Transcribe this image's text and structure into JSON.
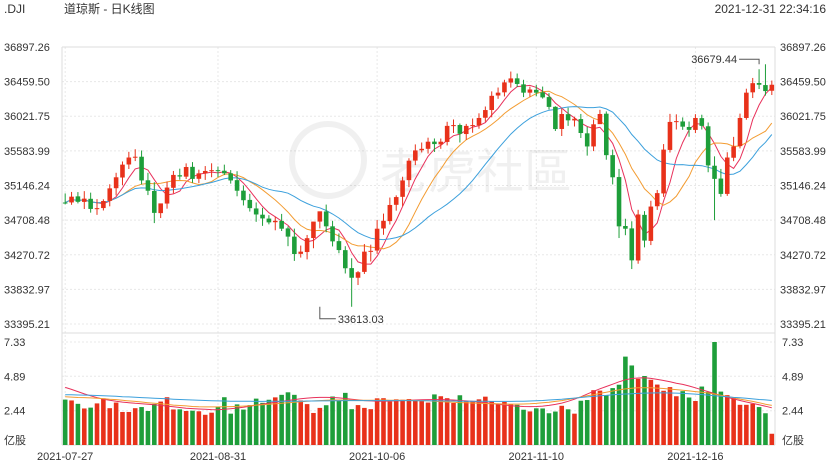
{
  "header": {
    "symbol": ".DJI",
    "title": "道琼斯 - 日K线图",
    "datetime": "2021-12-31 22:34:16"
  },
  "watermark": {
    "text": "老虎社區"
  },
  "chart_data": {
    "type": "candlestick",
    "price_ticks": [
      "36897.26",
      "36459.50",
      "36021.75",
      "35583.99",
      "35146.24",
      "34708.48",
      "34270.72",
      "33832.97",
      "33395.21"
    ],
    "price_range": [
      33395.21,
      36897.26
    ],
    "volume_ticks": [
      "7.33",
      "4.89",
      "2.44",
      "亿股"
    ],
    "volume_range": [
      0,
      7.33
    ],
    "x_ticks": [
      {
        "label": "2021-07-27",
        "index": 0
      },
      {
        "label": "2021-08-31",
        "index": 24
      },
      {
        "label": "2021-10-06",
        "index": 49
      },
      {
        "label": "2021-11-10",
        "index": 74
      },
      {
        "label": "2021-12-16",
        "index": 99
      }
    ],
    "annotations": {
      "high": {
        "label": "36679.44",
        "index": 109,
        "value": 36679.44
      },
      "low": {
        "label": "33613.03",
        "index": 40,
        "value": 33613.03
      }
    },
    "colors": {
      "up": "#e8311a",
      "down": "#1e9e3a",
      "ma5": "#e8315b",
      "ma10": "#f39c32",
      "ma20": "#3ca0dc"
    },
    "closes": [
      34930,
      35005,
      34940,
      34980,
      34850,
      34860,
      34950,
      35110,
      35250,
      35410,
      35500,
      35510,
      35210,
      35080,
      34800,
      34920,
      35120,
      35280,
      35260,
      35380,
      35230,
      35300,
      35330,
      35340,
      35330,
      35300,
      35210,
      35080,
      34960,
      34860,
      34780,
      34730,
      34680,
      34700,
      34600,
      34500,
      34280,
      34310,
      34480,
      34690,
      34820,
      34630,
      34440,
      34330,
      34100,
      33980,
      34050,
      34310,
      34320,
      34600,
      34700,
      34900,
      35000,
      35210,
      35460,
      35590,
      35610,
      35700,
      35670,
      35700,
      35900,
      35910,
      35800,
      35900,
      35910,
      36000,
      36100,
      36280,
      36320,
      36450,
      36500,
      36430,
      36320,
      36360,
      36320,
      36260,
      36140,
      35860,
      36050,
      35970,
      35990,
      35810,
      35640,
      35920,
      36050,
      35530,
      35250,
      34630,
      34600,
      34200,
      34780,
      34450,
      34880,
      35050,
      35600,
      35950,
      35960,
      35890,
      35850,
      36000,
      35900,
      35400,
      35230,
      35040,
      35500,
      35640,
      36000,
      36320,
      36440,
      36420,
      36340,
      36420
    ],
    "opens": [
      34931,
      34932,
      35009,
      34939,
      34978,
      34847,
      34861,
      34952,
      35112,
      35247,
      35412,
      35501,
      35510,
      35212,
      35077,
      34797,
      34918,
      35117,
      35276,
      35258,
      35382,
      35231,
      35301,
      35333,
      35340,
      35333,
      35300,
      35214,
      35081,
      34964,
      34856,
      34777,
      34728,
      34682,
      34698,
      34604,
      34500,
      34282,
      34305,
      34482,
      34690,
      34818,
      34630,
      34443,
      34329,
      34102,
      33980,
      34054,
      34312,
      34324,
      34603,
      34696,
      34902,
      35003,
      35214,
      35461,
      35592,
      35610,
      35701,
      35666,
      35697,
      35897,
      35911,
      35797,
      35901,
      35907,
      36003,
      36101,
      36284,
      36324,
      36448,
      36501,
      36425,
      36320,
      36356,
      36324,
      36264,
      36141,
      35861,
      36048,
      35969,
      35986,
      35806,
      35640,
      35922,
      36054,
      35530,
      35253,
      34634,
      34604,
      34198,
      34775,
      34446,
      34884,
      35046,
      35596,
      35949,
      35956,
      35886,
      35849,
      35998,
      35895,
      35396,
      35234,
      35040,
      35497,
      35644,
      36000,
      36324,
      36442,
      36416,
      36344
    ],
    "highs": [
      35046,
      35065,
      35063,
      35075,
      35056,
      34974,
      34972,
      35162,
      35307,
      35450,
      35572,
      35605,
      35589,
      35307,
      35188,
      34899,
      35197,
      35330,
      35359,
      35426,
      35442,
      35346,
      35392,
      35427,
      35386,
      35410,
      35341,
      35327,
      35146,
      35041,
      34932,
      34864,
      34771,
      34751,
      34787,
      34629,
      34601,
      34387,
      34521,
      34593,
      34750,
      34905,
      34700,
      34540,
      34379,
      34226,
      34064,
      34406,
      34398,
      34710,
      34791,
      34994,
      35022,
      35257,
      35491,
      35666,
      35690,
      35751,
      35741,
      35740,
      35952,
      35981,
      35930,
      35925,
      35993,
      36059,
      36145,
      36336,
      36385,
      36483,
      36587,
      36562,
      36483,
      36396,
      36419,
      36397,
      36314,
      36148,
      36123,
      36130,
      36015,
      36051,
      35888,
      35981,
      36103,
      36083,
      35600,
      35356,
      34726,
      34694,
      34839,
      34822,
      34953,
      35090,
      35670,
      36052,
      36046,
      36007,
      35955,
      36048,
      36041,
      35943,
      35515,
      35356,
      35567,
      35761,
      36055,
      36370,
      36506,
      36616,
      36679,
      36473
    ],
    "lows": [
      34908,
      34902,
      34920,
      34849,
      34803,
      34775,
      34830,
      34883,
      35021,
      35150,
      35355,
      35455,
      35160,
      35025,
      34671,
      34735,
      34853,
      35047,
      35219,
      35228,
      35180,
      35176,
      35217,
      35251,
      35253,
      35278,
      35170,
      35010,
      34894,
      34817,
      34687,
      34636,
      34655,
      34580,
      34571,
      34379,
      34193,
      34235,
      34212,
      34353,
      34604,
      34555,
      34376,
      34290,
      34034,
      33613,
      33888,
      34028,
      34185,
      34282,
      34523,
      34653,
      34828,
      34886,
      35125,
      35404,
      35564,
      35550,
      35570,
      35610,
      35653,
      35810,
      35690,
      35725,
      35813,
      35864,
      35952,
      36009,
      36242,
      36272,
      36384,
      36391,
      36264,
      36269,
      36275,
      36245,
      36107,
      35835,
      35772,
      35900,
      35892,
      35747,
      35524,
      35581,
      35928,
      35472,
      35160,
      34482,
      34518,
      34090,
      34157,
      34364,
      34393,
      34838,
      35002,
      35563,
      35854,
      35850,
      35763,
      35809,
      35854,
      35314,
      34708,
      35004,
      35015,
      35454,
      35615,
      35978,
      36252,
      36366,
      36283,
      36290
    ],
    "volumes": [
      3.23,
      3.17,
      2.93,
      2.6,
      2.66,
      2.96,
      3.32,
      2.62,
      3.02,
      2.35,
      2.35,
      2.62,
      2.7,
      2.42,
      2.92,
      3.09,
      3.4,
      2.53,
      2.54,
      2.42,
      2.44,
      2.4,
      2.15,
      2.3,
      2.72,
      3.4,
      2.23,
      2.89,
      2.52,
      2.84,
      3.3,
      3.0,
      3.22,
      3.39,
      3.57,
      3.75,
      3.57,
      3.17,
      2.91,
      2.28,
      2.64,
      2.83,
      3.45,
      3.19,
      3.71,
      2.55,
      2.84,
      2.64,
      2.55,
      3.32,
      3.33,
      3.09,
      3.25,
      3.22,
      3.27,
      3.17,
      3.13,
      3.02,
      3.6,
      3.47,
      3.33,
      2.99,
      3.54,
      3.13,
      3.14,
      3.25,
      3.44,
      3.13,
      2.95,
      3.07,
      2.9,
      2.86,
      2.51,
      2.39,
      2.61,
      2.6,
      2.26,
      2.38,
      2.79,
      2.54,
      2.23,
      3.15,
      3.2,
      3.9,
      3.87,
      3.56,
      4.05,
      4.29,
      6.29,
      5.66,
      4.71,
      4.91,
      4.64,
      4.3,
      3.86,
      4.12,
      3.47,
      3.83,
      3.38,
      3.13,
      4.16,
      3.78,
      7.33,
      3.8,
      3.55,
      3.34,
      2.86,
      2.86,
      2.93,
      2.7,
      2.26,
      0.8
    ],
    "ma5_volume": [
      4.1,
      3.96,
      3.8,
      3.64,
      3.5,
      3.37,
      3.26,
      3.18,
      3.11,
      3.05,
      3.01,
      2.97,
      2.94,
      2.9,
      2.86,
      2.82,
      2.77,
      2.72,
      2.67,
      2.62,
      2.59,
      2.56,
      2.54,
      2.52,
      2.51,
      2.54,
      2.58,
      2.63,
      2.69,
      2.76,
      2.84,
      2.91,
      2.98,
      3.04,
      3.1,
      3.17,
      3.23,
      3.29,
      3.34,
      3.37,
      3.39,
      3.39,
      3.38,
      3.35,
      3.31,
      3.26,
      3.21,
      3.16,
      3.14,
      3.12,
      3.12,
      3.13,
      3.14,
      3.16,
      3.18,
      3.2,
      3.22,
      3.23,
      3.23,
      3.23,
      3.22,
      3.2,
      3.17,
      3.14,
      3.1,
      3.06,
      3.01,
      2.96,
      2.9,
      2.85,
      2.8,
      2.77,
      2.74,
      2.73,
      2.74,
      2.77,
      2.82,
      2.89,
      2.98,
      3.11,
      3.26,
      3.43,
      3.62,
      3.82,
      4.0,
      4.16,
      4.33,
      4.5,
      4.64,
      4.73,
      4.77,
      4.78,
      4.74,
      4.67,
      4.59,
      4.5,
      4.4,
      4.31,
      4.2,
      4.07,
      3.93,
      3.8,
      3.66,
      3.52,
      3.39,
      3.28,
      3.17,
      3.06,
      2.96,
      2.86,
      2.76,
      2.65
    ],
    "ma10_volume": [
      3.43,
      3.41,
      3.38,
      3.37,
      3.35,
      3.33,
      3.3,
      3.26,
      3.23,
      3.18,
      3.14,
      3.1,
      3.06,
      3.01,
      2.97,
      2.93,
      2.89,
      2.84,
      2.81,
      2.78,
      2.74,
      2.72,
      2.71,
      2.71,
      2.71,
      2.72,
      2.73,
      2.75,
      2.77,
      2.8,
      2.84,
      2.87,
      2.9,
      2.94,
      2.97,
      3.01,
      3.04,
      3.08,
      3.11,
      3.14,
      3.16,
      3.19,
      3.2,
      3.2,
      3.2,
      3.19,
      3.19,
      3.19,
      3.18,
      3.19,
      3.2,
      3.19,
      3.19,
      3.19,
      3.18,
      3.17,
      3.16,
      3.15,
      3.12,
      3.09,
      3.06,
      3.04,
      3.02,
      3.0,
      2.99,
      2.97,
      2.95,
      2.94,
      2.93,
      2.91,
      2.91,
      2.91,
      2.92,
      2.93,
      2.96,
      3.0,
      3.04,
      3.1,
      3.16,
      3.24,
      3.32,
      3.41,
      3.5,
      3.58,
      3.67,
      3.75,
      3.84,
      3.92,
      3.99,
      4.04,
      4.07,
      4.08,
      4.08,
      4.05,
      4.02,
      3.98,
      3.94,
      3.9,
      3.85,
      3.8,
      3.75,
      3.7,
      3.62,
      3.54,
      3.45,
      3.36,
      3.27,
      3.19,
      3.1,
      3.01,
      2.9,
      2.82
    ],
    "ma20_volume": [
      3.58,
      3.57,
      3.56,
      3.55,
      3.54,
      3.52,
      3.51,
      3.49,
      3.47,
      3.44,
      3.42,
      3.4,
      3.37,
      3.35,
      3.33,
      3.31,
      3.29,
      3.26,
      3.24,
      3.22,
      3.2,
      3.18,
      3.17,
      3.15,
      3.14,
      3.13,
      3.12,
      3.12,
      3.11,
      3.11,
      3.1,
      3.1,
      3.11,
      3.11,
      3.11,
      3.12,
      3.12,
      3.12,
      3.13,
      3.13,
      3.14,
      3.14,
      3.15,
      3.15,
      3.16,
      3.16,
      3.16,
      3.16,
      3.16,
      3.16,
      3.16,
      3.16,
      3.16,
      3.16,
      3.16,
      3.15,
      3.15,
      3.15,
      3.14,
      3.14,
      3.13,
      3.13,
      3.12,
      3.12,
      3.12,
      3.11,
      3.11,
      3.1,
      3.1,
      3.1,
      3.1,
      3.11,
      3.12,
      3.13,
      3.15,
      3.17,
      3.2,
      3.23,
      3.26,
      3.3,
      3.34,
      3.38,
      3.42,
      3.46,
      3.5,
      3.53,
      3.57,
      3.6,
      3.63,
      3.65,
      3.67,
      3.69,
      3.7,
      3.71,
      3.71,
      3.7,
      3.69,
      3.67,
      3.65,
      3.62,
      3.59,
      3.55,
      3.51,
      3.47,
      3.43,
      3.39,
      3.36,
      3.32,
      3.28,
      3.24,
      3.21,
      3.17
    ]
  }
}
